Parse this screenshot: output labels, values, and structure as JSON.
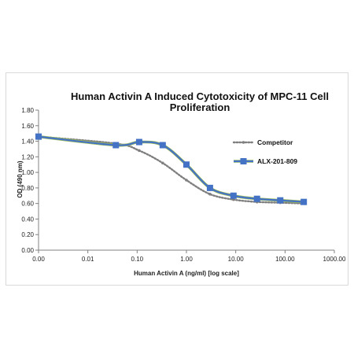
{
  "chart_data": {
    "type": "line",
    "title_lines": [
      "Human Activin A Induced Cytotoxicity of MPC-11 Cell",
      "Proliferation"
    ],
    "xlabel": "Human Activin A (ng/ml) [log scale]",
    "ylabel": "OD (490 nm)",
    "x_scale": "log",
    "x_ticks": [
      0.001,
      0.01,
      0.1,
      1,
      10,
      100,
      1000
    ],
    "x_tick_labels": [
      "0.00",
      "0.01",
      "0.10",
      "1.00",
      "10.00",
      "100.00",
      "1000.00"
    ],
    "ylim": [
      0,
      1.8
    ],
    "y_ticks": [
      0,
      0.2,
      0.4,
      0.6,
      0.8,
      1.0,
      1.2,
      1.4,
      1.6,
      1.8
    ],
    "y_tick_labels": [
      "0.00",
      "0.20",
      "0.40",
      "0.60",
      "0.80",
      "1.00",
      "1.20",
      "1.40",
      "1.60",
      "1.80"
    ],
    "grid": false,
    "legend_position": "right",
    "series": [
      {
        "name": "Competitor",
        "style": "dotted",
        "color": "#7f7f7f",
        "x": [
          0.001,
          0.037,
          0.11,
          0.33,
          1,
          3,
          9,
          27,
          80,
          240
        ],
        "y": [
          1.46,
          1.37,
          1.28,
          1.12,
          0.9,
          0.72,
          0.65,
          0.62,
          0.61,
          0.6
        ]
      },
      {
        "name": "ALX-201-809",
        "style": "solid",
        "color": "#4472c4",
        "line_highlight": "#9bbb59",
        "marker": "square",
        "x": [
          0.001,
          0.037,
          0.11,
          0.33,
          1,
          3,
          9,
          27,
          80,
          240
        ],
        "y": [
          1.46,
          1.35,
          1.39,
          1.35,
          1.1,
          0.8,
          0.7,
          0.66,
          0.64,
          0.62
        ]
      }
    ]
  }
}
